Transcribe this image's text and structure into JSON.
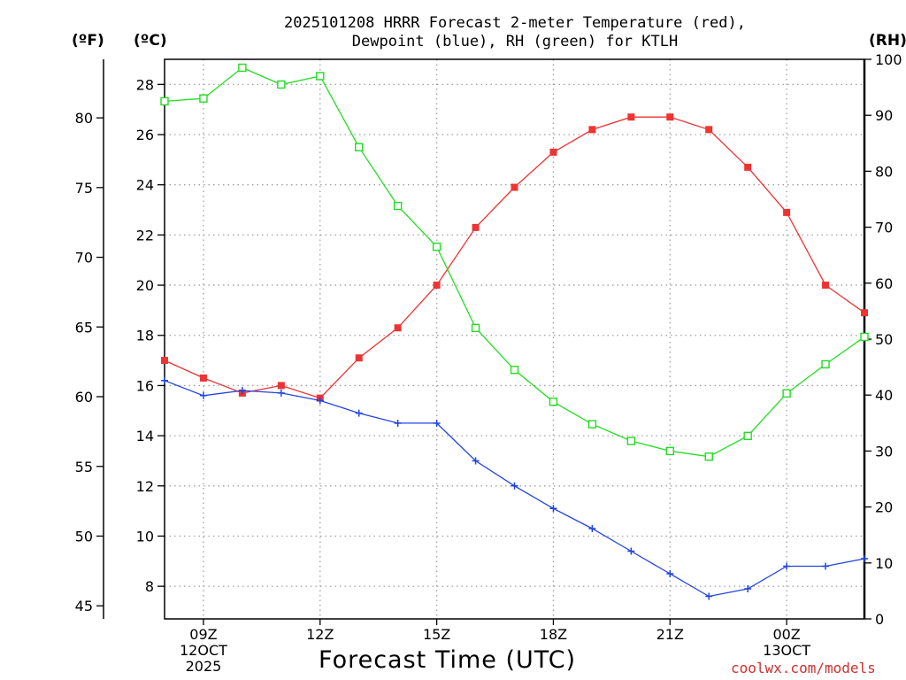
{
  "title": {
    "line1": "2025101208 HRRR Forecast 2-meter Temperature (red),",
    "line2": "Dewpoint (blue), RH (green) for KTLH"
  },
  "units": {
    "fahrenheit": "(ºF)",
    "celsius": "(ºC)",
    "rh": "(RH)"
  },
  "footer": {
    "xlabel": "Forecast Time (UTC)",
    "credit": "coolwx.com/models"
  },
  "colors": {
    "temperature": "#ee3333",
    "dewpoint": "#2244dd",
    "rh": "#22dd22",
    "grid": "#a0a0a0"
  },
  "chart_data": {
    "type": "line",
    "title": "2025101208 HRRR Forecast 2-meter Temperature (red), Dewpoint (blue), RH (green) for KTLH",
    "xlabel": "Forecast Time (UTC)",
    "x": [
      "08Z",
      "09Z",
      "10Z",
      "11Z",
      "12Z",
      "13Z",
      "14Z",
      "15Z",
      "16Z",
      "17Z",
      "18Z",
      "19Z",
      "20Z",
      "21Z",
      "22Z",
      "23Z",
      "00Z",
      "01Z",
      "02Z"
    ],
    "x_ticks": [
      {
        "index": 1,
        "label": "09Z",
        "sub": [
          "12OCT",
          "2025"
        ]
      },
      {
        "index": 4,
        "label": "12Z",
        "sub": []
      },
      {
        "index": 7,
        "label": "15Z",
        "sub": []
      },
      {
        "index": 10,
        "label": "18Z",
        "sub": []
      },
      {
        "index": 13,
        "label": "21Z",
        "sub": []
      },
      {
        "index": 16,
        "label": "00Z",
        "sub": [
          "13OCT"
        ]
      }
    ],
    "y_left_c": {
      "label": "(ºC)",
      "range": [
        6.7,
        29.0
      ],
      "ticks": [
        8,
        10,
        12,
        14,
        16,
        18,
        20,
        22,
        24,
        26,
        28
      ]
    },
    "y_left_f": {
      "label": "(ºF)",
      "ticks": [
        45,
        50,
        55,
        60,
        65,
        70,
        75,
        80
      ]
    },
    "y_right_rh": {
      "label": "(RH)",
      "range": [
        0,
        100
      ],
      "ticks": [
        0,
        10,
        20,
        30,
        40,
        50,
        60,
        70,
        80,
        90,
        100
      ]
    },
    "series": [
      {
        "name": "Temperature",
        "unit": "C",
        "axis": "left",
        "marker": "filled-square",
        "values": [
          17.0,
          16.3,
          15.7,
          16.0,
          15.5,
          17.1,
          18.3,
          20.0,
          22.3,
          23.9,
          25.3,
          26.2,
          26.7,
          26.7,
          26.2,
          24.7,
          22.9,
          20.0,
          18.9
        ]
      },
      {
        "name": "Dewpoint",
        "unit": "C",
        "axis": "left",
        "marker": "plus",
        "values": [
          16.2,
          15.6,
          15.8,
          15.7,
          15.4,
          14.9,
          14.5,
          14.5,
          13.0,
          12.0,
          11.1,
          10.3,
          9.4,
          8.5,
          7.6,
          7.9,
          8.8,
          8.8,
          9.1
        ]
      },
      {
        "name": "RH",
        "unit": "%",
        "axis": "right",
        "marker": "open-square",
        "values": [
          92.5,
          93.0,
          98.5,
          95.5,
          97.0,
          84.3,
          73.8,
          66.5,
          52.0,
          44.5,
          38.8,
          34.8,
          31.8,
          30.0,
          29.0,
          32.7,
          40.3,
          45.5,
          50.4
        ]
      }
    ]
  }
}
